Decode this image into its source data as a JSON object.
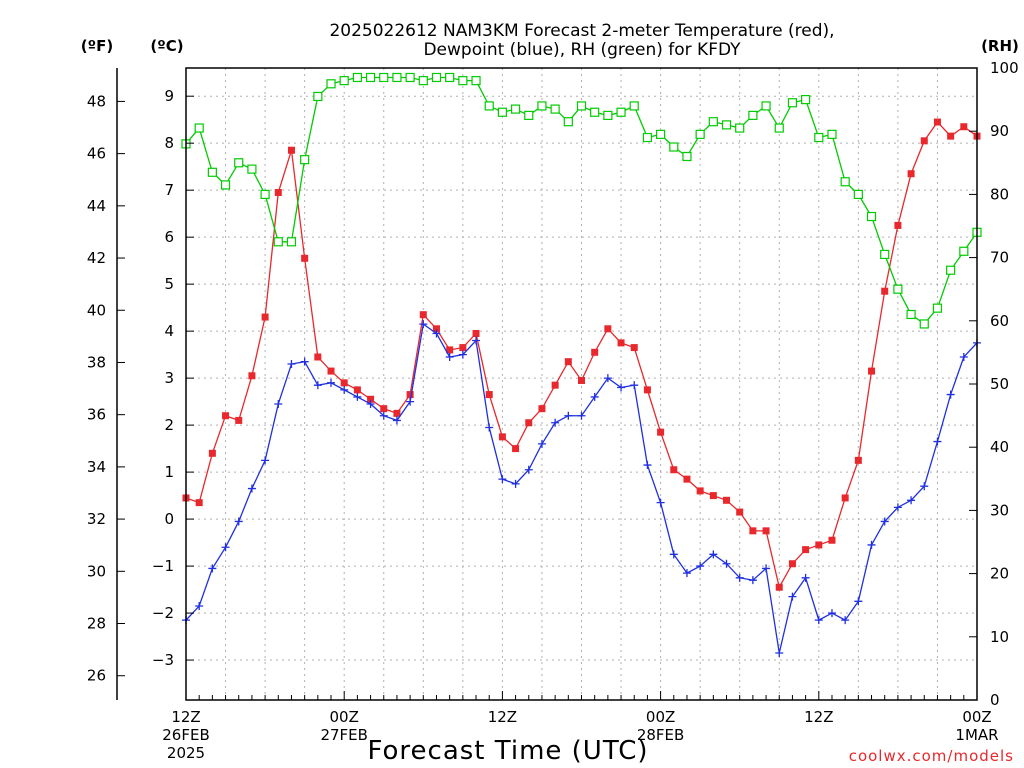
{
  "title_line1": "2025022612 NAM3KM Forecast 2-meter Temperature (red),",
  "title_line2": "Dewpoint (blue), RH (green) for KFDY",
  "unit_f": "(ºF)",
  "unit_c": "(ºC)",
  "unit_rh": "(RH)",
  "xlabel": "Forecast Time (UTC)",
  "credit": "coolwx.com/models",
  "colors": {
    "temperature": "#e8282c",
    "dewpoint": "#2030e0",
    "rh": "#00cc00",
    "grid": "#b0b0b0"
  },
  "chart_data": {
    "type": "line",
    "x_units": "forecast hour from 2025-02-26 12Z",
    "xlim": [
      0,
      60
    ],
    "x": [
      0,
      1,
      2,
      3,
      4,
      5,
      6,
      7,
      8,
      9,
      10,
      11,
      12,
      13,
      14,
      15,
      16,
      17,
      18,
      19,
      20,
      21,
      22,
      23,
      24,
      25,
      26,
      27,
      28,
      29,
      30,
      31,
      32,
      33,
      34,
      35,
      36,
      37,
      38,
      39,
      40,
      41,
      42,
      43,
      44,
      45,
      46,
      47,
      48,
      49,
      50,
      51,
      52,
      53,
      54,
      55,
      56,
      57,
      58,
      59,
      60
    ],
    "xticks": [
      {
        "x": 0,
        "lines": [
          "12Z",
          "26FEB",
          "2025"
        ]
      },
      {
        "x": 12,
        "lines": [
          "00Z",
          "27FEB"
        ]
      },
      {
        "x": 24,
        "lines": [
          "12Z"
        ]
      },
      {
        "x": 36,
        "lines": [
          "00Z",
          "28FEB"
        ]
      },
      {
        "x": 48,
        "lines": [
          "12Z"
        ]
      },
      {
        "x": 60,
        "lines": [
          "00Z",
          "1MAR"
        ]
      }
    ],
    "y_celsius": {
      "ylim": [
        -3.85,
        9.6
      ],
      "ticks": [
        -3,
        -2,
        -1,
        0,
        1,
        2,
        3,
        4,
        5,
        6,
        7,
        8,
        9
      ]
    },
    "y_fahrenheit": {
      "ticks": [
        26,
        28,
        30,
        32,
        34,
        36,
        38,
        40,
        42,
        44,
        46,
        48
      ]
    },
    "y_rh": {
      "ylim": [
        0,
        100
      ],
      "ticks": [
        0,
        10,
        20,
        30,
        40,
        50,
        60,
        70,
        80,
        90,
        100
      ]
    },
    "grid": true,
    "series": [
      {
        "name": "Temperature",
        "axis": "celsius",
        "values": [
          0.45,
          0.35,
          1.4,
          2.2,
          2.1,
          3.05,
          4.3,
          6.95,
          7.85,
          5.55,
          3.45,
          3.15,
          2.9,
          2.75,
          2.55,
          2.35,
          2.25,
          2.65,
          4.35,
          4.05,
          3.6,
          3.65,
          3.95,
          2.65,
          1.75,
          1.5,
          2.05,
          2.35,
          2.85,
          3.35,
          2.95,
          3.55,
          4.05,
          3.75,
          3.65,
          2.75,
          1.85,
          1.05,
          0.85,
          0.6,
          0.5,
          0.4,
          0.15,
          -0.25,
          -0.25,
          -1.45,
          -0.95,
          -0.65,
          -0.55,
          -0.45,
          0.45,
          1.25,
          3.15,
          4.85,
          6.25,
          7.35,
          8.05,
          8.45,
          8.15,
          8.35,
          8.15
        ]
      },
      {
        "name": "Dewpoint",
        "axis": "celsius",
        "values": [
          -2.15,
          -1.85,
          -1.05,
          -0.6,
          -0.05,
          0.65,
          1.25,
          2.45,
          3.3,
          3.35,
          2.85,
          2.9,
          2.75,
          2.6,
          2.45,
          2.2,
          2.1,
          2.5,
          4.15,
          3.95,
          3.45,
          3.5,
          3.8,
          1.95,
          0.85,
          0.75,
          1.05,
          1.6,
          2.05,
          2.2,
          2.2,
          2.6,
          3.0,
          2.8,
          2.85,
          1.15,
          0.35,
          -0.75,
          -1.15,
          -1.0,
          -0.75,
          -0.95,
          -1.25,
          -1.3,
          -1.05,
          -2.85,
          -1.65,
          -1.25,
          -2.15,
          -2.0,
          -2.15,
          -1.75,
          -0.55,
          -0.05,
          0.25,
          0.4,
          0.7,
          1.65,
          2.65,
          3.45,
          3.75
        ]
      },
      {
        "name": "RH",
        "axis": "rh",
        "values": [
          88,
          90.5,
          83.5,
          81.5,
          85,
          84,
          80,
          72.5,
          72.5,
          85.5,
          95.5,
          97.5,
          98,
          98.5,
          98.5,
          98.5,
          98.5,
          98.5,
          98,
          98.5,
          98.5,
          98,
          98,
          94,
          93,
          93.5,
          92.5,
          94,
          93.5,
          91.5,
          94,
          93,
          92.5,
          93,
          94,
          89,
          89.5,
          87.5,
          86,
          89.5,
          91.5,
          91,
          90.5,
          92.5,
          94,
          90.5,
          94.5,
          95,
          89,
          89.5,
          82,
          80,
          76.5,
          70.5,
          65,
          61,
          59.5,
          62,
          68,
          71,
          74
        ]
      }
    ]
  }
}
